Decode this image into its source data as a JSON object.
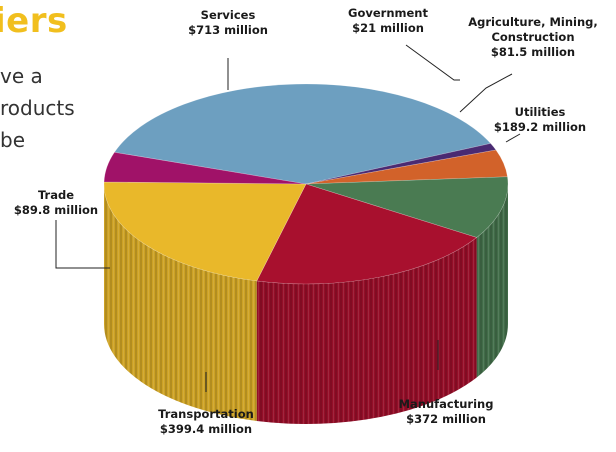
{
  "page": {
    "heading": "iers",
    "body_lines": [
      "ve a",
      "roducts",
      "be"
    ]
  },
  "colors": {
    "services": "#6d9fc0",
    "government": "#4a2a72",
    "agriculture": "#d2622a",
    "utilities": "#4a7b52",
    "manufacturing": "#a8102e",
    "transportation": "#e9b82a",
    "trade": "#a01268",
    "heading": "#f1bf1e"
  },
  "chart_data": {
    "type": "pie",
    "title": "",
    "unit": "million",
    "slices": [
      {
        "name": "Services",
        "value": 713,
        "display": "$713 million",
        "color_key": "services"
      },
      {
        "name": "Government",
        "value": 21,
        "display": "$21 million",
        "color_key": "government"
      },
      {
        "name": "Agriculture, Mining, Construction",
        "name_lines": [
          "Agriculture, Mining,",
          "Construction"
        ],
        "value": 81.5,
        "display": "$81.5 million",
        "color_key": "agriculture"
      },
      {
        "name": "Utilities",
        "value": 189.2,
        "display": "$189.2 million",
        "color_key": "utilities"
      },
      {
        "name": "Manufacturing",
        "value": 372,
        "display": "$372 million",
        "color_key": "manufacturing"
      },
      {
        "name": "Transportation",
        "value": 399.4,
        "display": "$399.4 million",
        "color_key": "transportation"
      },
      {
        "name": "Trade",
        "value": 89.8,
        "display": "$89.8 million",
        "color_key": "trade"
      }
    ],
    "style": "3d-cylinder"
  }
}
